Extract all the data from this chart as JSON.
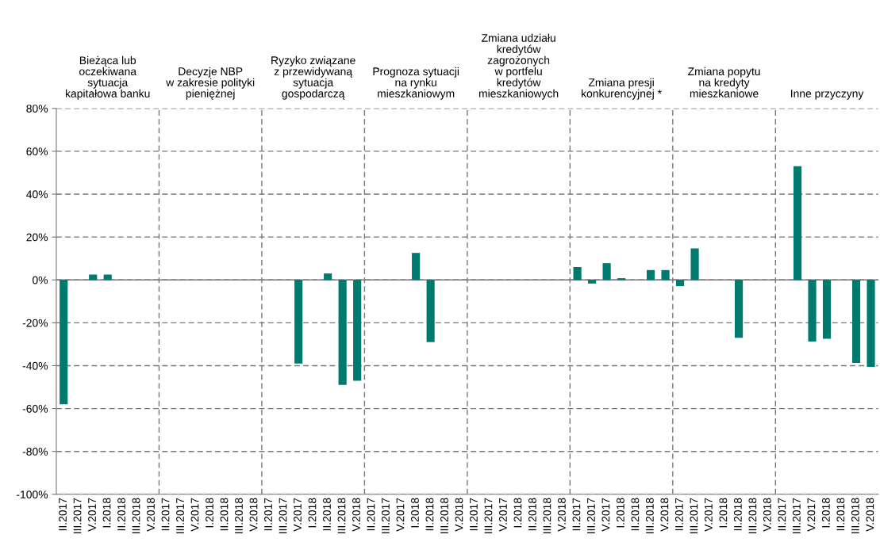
{
  "chart_data": {
    "type": "bar",
    "categories": [
      "II.2017",
      "III.2017",
      "V.2017",
      "I.2018",
      "II.2018",
      "III.2018",
      "V.2018",
      "II.2017",
      "III.2017",
      "V.2017",
      "I.2018",
      "II.2018",
      "III.2018",
      "V.2018",
      "II.2017",
      "III.2017",
      "V.2017",
      "I.2018",
      "II.2018",
      "III.2018",
      "V.2018",
      "II.2017",
      "III.2017",
      "V.2017",
      "I.2018",
      "II.2018",
      "III.2018",
      "V.2018",
      "II.2017",
      "III.2017",
      "V.2017",
      "I.2018",
      "II.2018",
      "III.2018",
      "V.2018",
      "II.2017",
      "III.2017",
      "V.2017",
      "I.2018",
      "II.2018",
      "III.2018",
      "V.2018",
      "II.2017",
      "III.2017",
      "V.2017",
      "I.2018",
      "II.2018",
      "III.2018",
      "V.2018",
      "II.2017",
      "III.2017",
      "V.2017",
      "I.2018",
      "II.2018",
      "III.2018",
      "V.2018"
    ],
    "series": [
      {
        "color": "#007a6e",
        "values": [
          -58,
          0,
          2.5,
          2.5,
          0,
          0,
          0,
          0,
          0,
          null,
          0,
          0,
          0,
          0,
          0,
          0,
          -39,
          0,
          3,
          -49,
          -47,
          0,
          0,
          0,
          12.6,
          -29,
          0,
          0,
          0,
          0,
          0,
          0,
          0,
          0,
          0,
          6,
          -1.7,
          7.8,
          0.8,
          null,
          4.6,
          4.6,
          -2.9,
          14.7,
          0,
          0,
          -27,
          0,
          0,
          0,
          53,
          -28.7,
          -27.4,
          null,
          -38.7,
          -40.6
        ]
      }
    ],
    "annotations": [
      "Bieżąca lub\noczekiwana\nsytuacja\nkapitałowa banku",
      "Decyzje NBP\nw zakresie polityki\npieniężnej",
      "Ryzyko związane\nz przewidywaną\nsytuacja\ngospodarczą",
      "Prognoza sytuacji\nna rynku\nmieszkaniowym",
      "Zmiana udziału\nkredytów\nzagrożonych\nw portfelu\nkredytów\nmieszkaniowych",
      "Zmiana presji\nkonkurencyjnej *",
      "Zmiana popytu\nna kredyty\nmieszkaniowe",
      "Inne przyczyny"
    ],
    "ylim": [
      -100,
      80
    ],
    "yticks": [
      {
        "value": -100,
        "label": "-100%"
      },
      {
        "value": -80,
        "label": "-80%"
      },
      {
        "value": -60,
        "label": "-60%"
      },
      {
        "value": -40,
        "label": "-40%"
      },
      {
        "value": -20,
        "label": "-20%"
      },
      {
        "value": 0,
        "label": "0%"
      },
      {
        "value": 20,
        "label": "20%"
      },
      {
        "value": 40,
        "label": "40%"
      },
      {
        "value": 60,
        "label": "60%"
      },
      {
        "value": 80,
        "label": "80%"
      }
    ],
    "grid": "y",
    "legend": false
  }
}
